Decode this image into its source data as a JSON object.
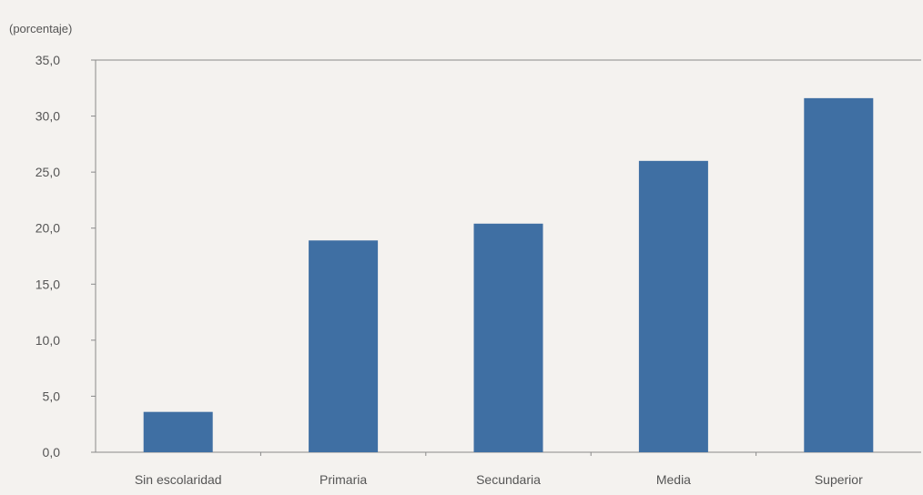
{
  "chart_data": {
    "type": "bar",
    "title": "",
    "y_unit_label": "(porcentaje)",
    "categories": [
      "Sin escolaridad",
      "Primaria",
      "Secundaria",
      "Media",
      "Superior"
    ],
    "values": [
      3.6,
      18.9,
      20.4,
      26.0,
      31.6
    ],
    "ylim": [
      0,
      35
    ],
    "y_ticks": [
      "0,0",
      "5,0",
      "10,0",
      "15,0",
      "20,0",
      "25,0",
      "30,0",
      "35,0"
    ],
    "y_tick_values": [
      0,
      5,
      10,
      15,
      20,
      25,
      30,
      35
    ],
    "bar_color": "#3f6fa3",
    "grid": false,
    "legend": "none"
  }
}
